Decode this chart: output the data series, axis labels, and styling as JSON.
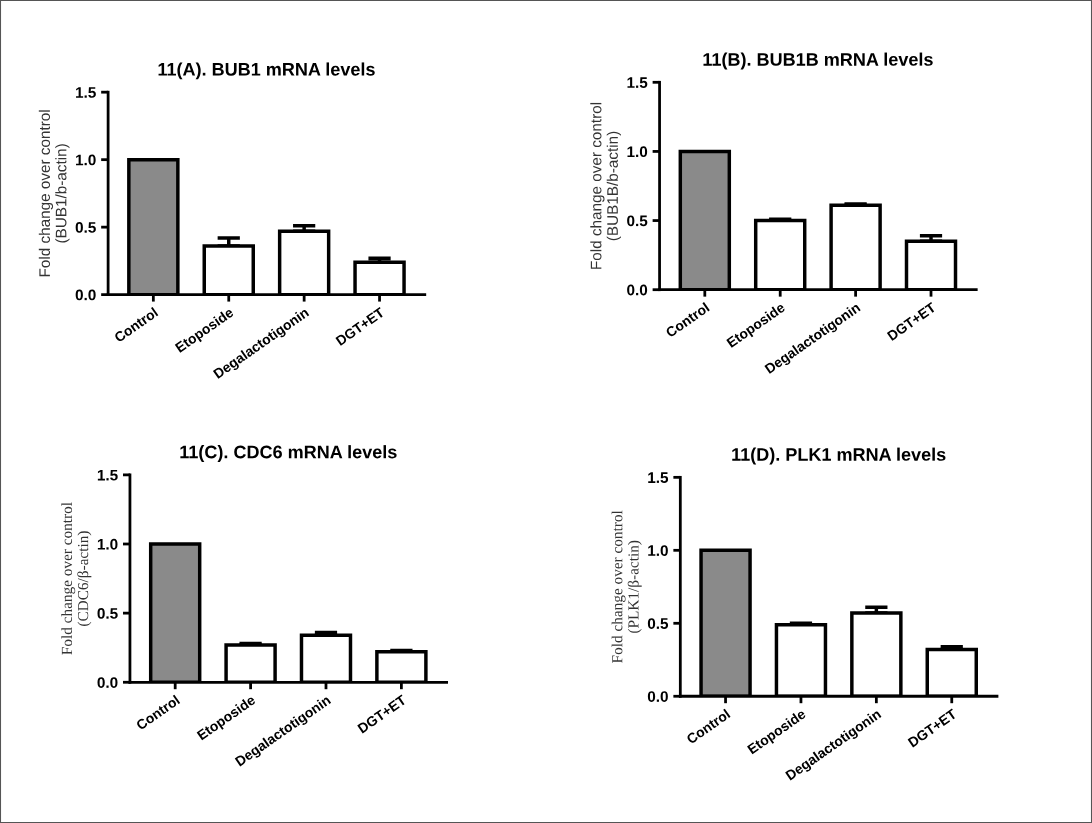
{
  "chart_data": [
    {
      "type": "bar",
      "title": "11(A). BUB1 mRNA levels",
      "ylabel": "Fold change over control\n(BUB1/b-actin)",
      "categories": [
        "Control",
        "Etoposide",
        "Degalactotigonin",
        "DGT+ET"
      ],
      "values": [
        1.0,
        0.36,
        0.47,
        0.24
      ],
      "colors": [
        "#8a8a8a",
        "#ffffff",
        "#ffffff",
        "#ffffff"
      ],
      "errors": [
        null,
        [
          0.36,
          0.42
        ],
        [
          0.47,
          0.51
        ],
        [
          0.24,
          0.27
        ]
      ],
      "ylim": [
        0,
        1.5
      ],
      "yticks": [
        {
          "value": 0,
          "label": "0.0"
        },
        {
          "value": 0.5,
          "label": "0.5"
        },
        {
          "value": 1,
          "label": "1.0"
        },
        {
          "value": 1.5,
          "label": "1.5"
        }
      ],
      "grid": false
    },
    {
      "type": "bar",
      "title": "11(B). BUB1B mRNA levels",
      "ylabel": "Fold change over control\n(BUB1B/b-actin)",
      "categories": [
        "Control",
        "Etoposide",
        "Degalactotigonin",
        "DGT+ET"
      ],
      "values": [
        1.0,
        0.5,
        0.61,
        0.35
      ],
      "colors": [
        "#8a8a8a",
        "#ffffff",
        "#ffffff",
        "#ffffff"
      ],
      "errors": [
        null,
        [
          0.5,
          0.51
        ],
        [
          0.61,
          0.62
        ],
        [
          0.35,
          0.39
        ]
      ],
      "ylim": [
        0,
        1.5
      ],
      "yticks": [
        {
          "value": 0,
          "label": "0.0"
        },
        {
          "value": 0.5,
          "label": "0.5"
        },
        {
          "value": 1,
          "label": "1.0"
        },
        {
          "value": 1.5,
          "label": "1.5"
        }
      ],
      "grid": false
    },
    {
      "type": "bar",
      "title": "11(C). CDC6 mRNA levels",
      "ylabel": "Fold change over control\n(CDC6/β-actin)",
      "categories": [
        "Control",
        "Etoposide",
        "Degalactotigonin",
        "DGT+ET"
      ],
      "values": [
        1.0,
        0.27,
        0.34,
        0.22
      ],
      "colors": [
        "#8a8a8a",
        "#ffffff",
        "#ffffff",
        "#ffffff"
      ],
      "errors": [
        null,
        [
          0.27,
          0.28
        ],
        [
          0.34,
          0.36
        ],
        [
          0.22,
          0.23
        ]
      ],
      "ylim": [
        0,
        1.5
      ],
      "yticks": [
        {
          "value": 0,
          "label": "0.0"
        },
        {
          "value": 0.5,
          "label": "0.5"
        },
        {
          "value": 1,
          "label": "1.0"
        },
        {
          "value": 1.5,
          "label": "1.5"
        }
      ],
      "grid": false
    },
    {
      "type": "bar",
      "title": "11(D). PLK1 mRNA levels",
      "ylabel": "Fold change over control\n(PLK1/β-actin)",
      "categories": [
        "Control",
        "Etoposide",
        "Degalactotigonin",
        "DGT+ET"
      ],
      "values": [
        1.0,
        0.49,
        0.57,
        0.32
      ],
      "colors": [
        "#8a8a8a",
        "#ffffff",
        "#ffffff",
        "#ffffff"
      ],
      "errors": [
        null,
        [
          0.49,
          0.5
        ],
        [
          0.57,
          0.61
        ],
        [
          0.32,
          0.34
        ]
      ],
      "ylim": [
        0,
        1.5
      ],
      "yticks": [
        {
          "value": 0,
          "label": "0.0"
        },
        {
          "value": 0.5,
          "label": "0.5"
        },
        {
          "value": 1,
          "label": "1.0"
        },
        {
          "value": 1.5,
          "label": "1.5"
        }
      ],
      "grid": false
    }
  ]
}
